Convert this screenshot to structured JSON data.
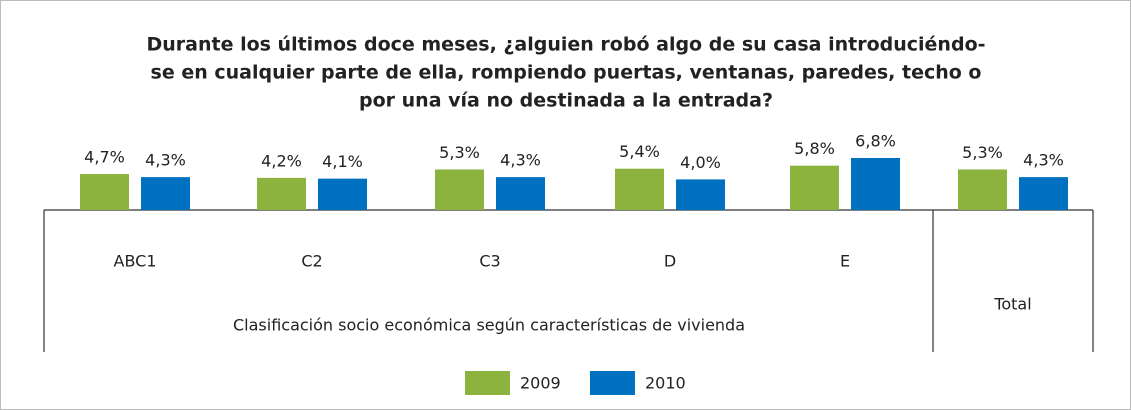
{
  "chart_data": {
    "type": "bar",
    "title": [
      "Durante los últimos doce meses, ¿alguien robó algo de su casa introduciéndo-",
      "se en cualquier parte de ella, rompiendo puertas, ventanas, paredes, techo o",
      "por una vía no destinada a la entrada?"
    ],
    "categories": [
      "ABC1",
      "C2",
      "C3",
      "D",
      "E",
      "Total"
    ],
    "xlabel": "Clasificación socio económica según características de vivienda",
    "series": [
      {
        "name": "2009",
        "color": "#8db33f",
        "values": [
          4.7,
          4.2,
          5.3,
          5.4,
          5.8,
          5.3
        ],
        "value_labels": [
          "4,7%",
          "4,2%",
          "5,3%",
          "5,4%",
          "5,8%",
          "5,3%"
        ]
      },
      {
        "name": "2010",
        "color": "#0070c0",
        "values": [
          4.3,
          4.1,
          4.3,
          4.0,
          6.8,
          4.3
        ],
        "value_labels": [
          "4,3%",
          "4,1%",
          "4,3%",
          "4,0%",
          "6,8%",
          "4,3%"
        ]
      }
    ],
    "legend": "bottom"
  }
}
